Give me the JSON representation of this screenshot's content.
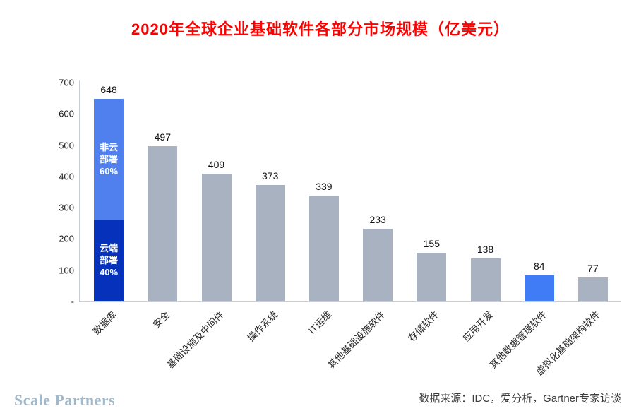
{
  "title": "2020年全球企业基础软件各部分市场规模（亿美元）",
  "footer": {
    "brand": "Scale Partners",
    "source": "数据来源：IDC，爱分析，Gartner专家访谈"
  },
  "colors": {
    "title": "#ff0000",
    "bar_default": "#a9b2c0",
    "bar_highlight": "#3f7cf5",
    "bar_cloud": "#0531bb",
    "bar_noncloud": "#4f80ee",
    "axis": "#c9ced6"
  },
  "chart_data": {
    "type": "bar",
    "title": "2020年全球企业基础软件各部分市场规模（亿美元）",
    "xlabel": "",
    "ylabel": "",
    "ylim": [
      0,
      700
    ],
    "grid": false,
    "legend": "none",
    "ytick_labels": [
      "700",
      "600",
      "500",
      "400",
      "300",
      "200",
      "100",
      "-"
    ],
    "categories": [
      "数据库",
      "安全",
      "基础设施及中间件",
      "操作系统",
      "IT运维",
      "其他基础设施软件",
      "存储软件",
      "应用开发",
      "其他数据管理软件",
      "虚拟化基础架构软件"
    ],
    "values": [
      648,
      497,
      409,
      373,
      339,
      233,
      155,
      138,
      84,
      77
    ],
    "bars": [
      {
        "category": "数据库",
        "value": 648,
        "segments": [
          {
            "label": "云端部署40%",
            "value": 259.2,
            "color_key": "bar_cloud"
          },
          {
            "label": "非云部署60%",
            "value": 388.8,
            "color_key": "bar_noncloud"
          }
        ]
      },
      {
        "category": "安全",
        "value": 497,
        "color_key": "bar_default"
      },
      {
        "category": "基础设施及中间件",
        "value": 409,
        "color_key": "bar_default"
      },
      {
        "category": "操作系统",
        "value": 373,
        "color_key": "bar_default"
      },
      {
        "category": "IT运维",
        "value": 339,
        "color_key": "bar_default"
      },
      {
        "category": "其他基础设施软件",
        "value": 233,
        "color_key": "bar_default"
      },
      {
        "category": "存储软件",
        "value": 155,
        "color_key": "bar_default"
      },
      {
        "category": "应用开发",
        "value": 138,
        "color_key": "bar_default"
      },
      {
        "category": "其他数据管理软件",
        "value": 84,
        "color_key": "bar_highlight"
      },
      {
        "category": "虚拟化基础架构软件",
        "value": 77,
        "color_key": "bar_default"
      }
    ]
  }
}
